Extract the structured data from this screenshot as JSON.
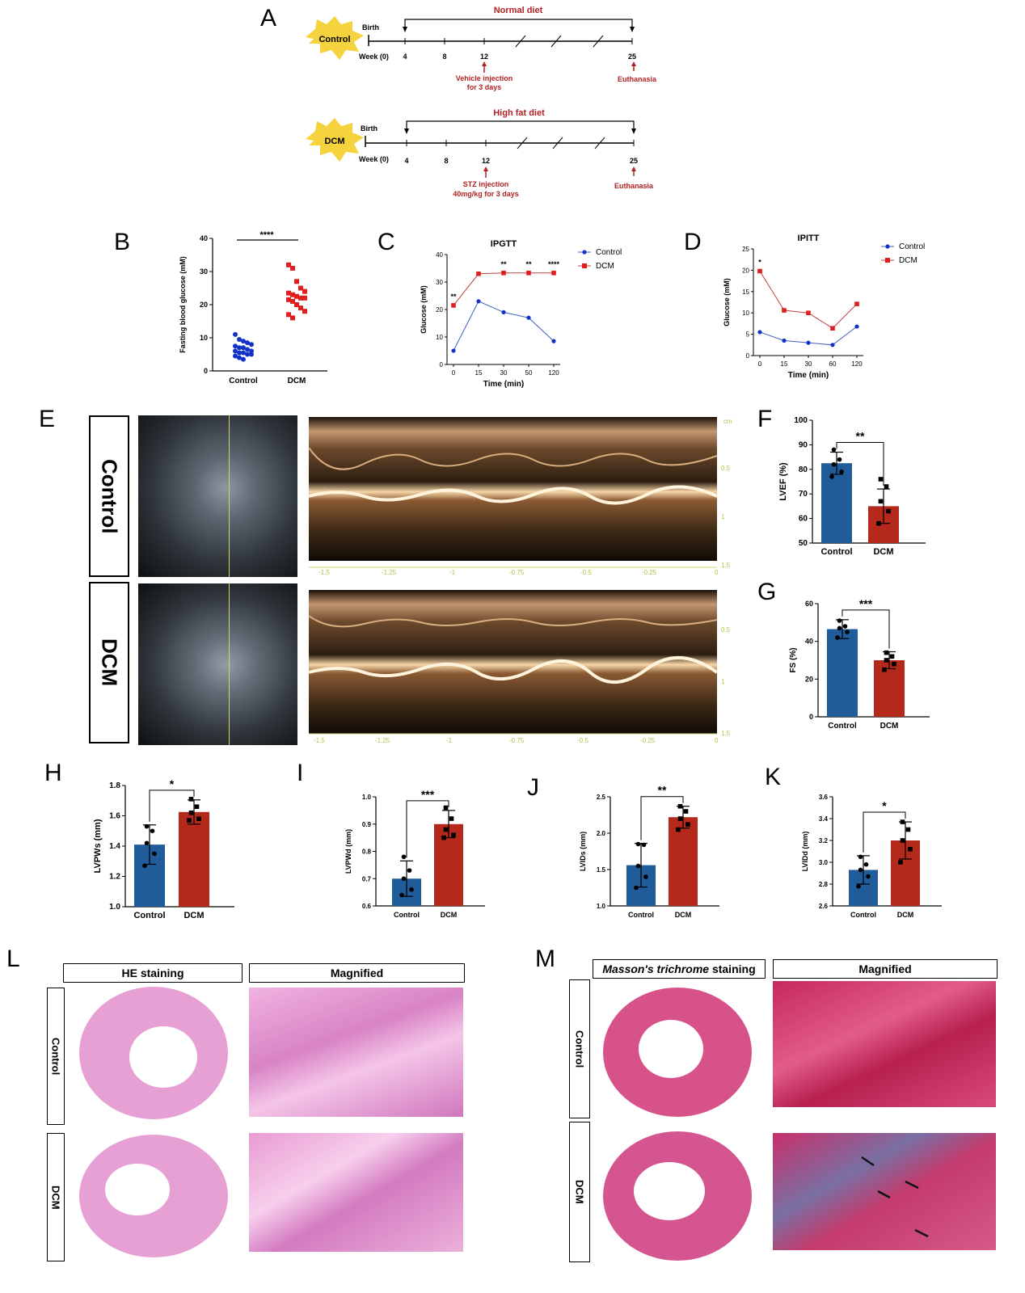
{
  "panel_letters": {
    "A": "A",
    "B": "B",
    "C": "C",
    "D": "D",
    "E": "E",
    "F": "F",
    "G": "G",
    "H": "H",
    "I": "I",
    "J": "J",
    "K": "K",
    "L": "L",
    "M": "M"
  },
  "timeline": {
    "control": {
      "group": "Control",
      "diet": "Normal diet",
      "birth": "Birth",
      "week_label": "Week (0)",
      "weeks": [
        "4",
        "8",
        "12",
        "25"
      ],
      "injection": "Vehicle injection",
      "injection_detail": "for 3 days",
      "end": "Euthanasia"
    },
    "dcm": {
      "group": "DCM",
      "diet": "High fat diet",
      "birth": "Birth",
      "week_label": "Week (0)",
      "weeks": [
        "4",
        "8",
        "12",
        "25"
      ],
      "injection": "STZ injection",
      "injection_detail": "40mg/kg for 3 days",
      "end": "Euthanasia"
    }
  },
  "echo": {
    "rows": [
      "Control",
      "DCM"
    ],
    "scale_top": "cm",
    "scale_marks": [
      "0.5",
      "1",
      "1.5"
    ],
    "time_ticks": [
      "-1.5",
      "-1.25",
      "-1",
      "-0.75",
      "-0.5",
      "-0.25",
      "0"
    ]
  },
  "histology": {
    "he_header": "HE staining",
    "he_magnified": "Magnified",
    "masson_header_italic": "Masson's trichrome",
    "masson_header_rest": " staining",
    "masson_magnified": "Magnified",
    "rows": [
      "Control",
      "DCM"
    ]
  },
  "colors": {
    "control": "#1f5c99",
    "dcm": "#b5291c",
    "blue_pt": "#1432c8",
    "red_pt": "#e01e1e",
    "dark_red": "#b22222"
  },
  "chart_data": [
    {
      "id": "B",
      "type": "scatter",
      "title": "",
      "ylabel": "Fasting blood glucose (mM)",
      "categories": [
        "Control",
        "DCM"
      ],
      "ylim": [
        0,
        40
      ],
      "yticks": [
        0,
        10,
        20,
        30,
        40
      ],
      "sig": "****",
      "points": {
        "Control": [
          11,
          9.5,
          9,
          8.5,
          8,
          7.5,
          7,
          7,
          6.5,
          6,
          6,
          5.5,
          5.5,
          5,
          5,
          4.5,
          4,
          3.5
        ],
        "DCM": [
          32,
          31,
          27,
          25,
          24,
          23.5,
          23,
          22.5,
          22,
          22,
          21.5,
          21,
          20,
          19,
          18,
          17,
          16
        ]
      }
    },
    {
      "id": "C",
      "type": "line",
      "title": "IPGTT",
      "xlabel": "Time (min)",
      "ylabel": "Glucose (mM)",
      "x": [
        "0",
        "15",
        "30",
        "50",
        "120"
      ],
      "ylim": [
        0,
        40
      ],
      "yticks": [
        0,
        10,
        20,
        30,
        40
      ],
      "series": [
        {
          "name": "Control",
          "values": [
            5,
            23,
            19,
            17,
            8.5
          ]
        },
        {
          "name": "DCM",
          "values": [
            21.5,
            33,
            33.3,
            33.3,
            33.3
          ]
        }
      ],
      "sig": [
        "**",
        "",
        "**",
        "**",
        "****"
      ]
    },
    {
      "id": "D",
      "type": "line",
      "title": "IPITT",
      "xlabel": "Time (min)",
      "ylabel": "Glucose (mM)",
      "x": [
        "0",
        "15",
        "30",
        "60",
        "120"
      ],
      "ylim": [
        0,
        25
      ],
      "yticks": [
        0,
        5,
        10,
        15,
        20,
        25
      ],
      "series": [
        {
          "name": "Control",
          "values": [
            5.5,
            3.5,
            3,
            2.5,
            6.8
          ]
        },
        {
          "name": "DCM",
          "values": [
            19.8,
            10.6,
            10,
            6.4,
            12.1
          ]
        }
      ],
      "sig": [
        "*",
        "",
        "",
        "",
        ""
      ]
    },
    {
      "id": "F",
      "type": "bar",
      "ylabel": "LVEF (%)",
      "categories": [
        "Control",
        "DCM"
      ],
      "values": [
        82.5,
        65
      ],
      "errors": [
        4.5,
        7
      ],
      "ylim": [
        50,
        100
      ],
      "yticks": [
        50,
        60,
        70,
        80,
        90,
        100
      ],
      "sig": "**",
      "points": [
        [
          88,
          84,
          82,
          79,
          77
        ],
        [
          76,
          73,
          67,
          63,
          58
        ]
      ]
    },
    {
      "id": "G",
      "type": "bar",
      "ylabel": "FS (%)",
      "categories": [
        "Control",
        "DCM"
      ],
      "values": [
        46.5,
        30
      ],
      "errors": [
        5,
        4.5
      ],
      "ylim": [
        0,
        60
      ],
      "yticks": [
        0,
        20,
        40,
        60
      ],
      "sig": "***",
      "points": [
        [
          51,
          48,
          47,
          45,
          42
        ],
        [
          34,
          32,
          30,
          28,
          25
        ]
      ]
    },
    {
      "id": "H",
      "type": "bar",
      "ylabel": "LVPWs (mm)",
      "categories": [
        "Control",
        "DCM"
      ],
      "values": [
        1.41,
        1.625
      ],
      "errors": [
        0.13,
        0.08
      ],
      "ylim": [
        1.0,
        1.8
      ],
      "yticks": [
        1.0,
        1.2,
        1.4,
        1.6,
        1.8
      ],
      "sig": "*",
      "points": [
        [
          1.53,
          1.5,
          1.42,
          1.35,
          1.27
        ],
        [
          1.71,
          1.66,
          1.62,
          1.58,
          1.57
        ]
      ]
    },
    {
      "id": "I",
      "type": "bar",
      "ylabel": "LVPWd (mm)",
      "categories": [
        "Control",
        "DCM"
      ],
      "values": [
        0.7,
        0.9
      ],
      "errors": [
        0.065,
        0.05
      ],
      "ylim": [
        0.6,
        1.0
      ],
      "yticks": [
        0.6,
        0.7,
        0.8,
        0.9,
        1.0
      ],
      "sig": "***",
      "points": [
        [
          0.78,
          0.73,
          0.7,
          0.66,
          0.64
        ],
        [
          0.96,
          0.92,
          0.88,
          0.86,
          0.85
        ]
      ]
    },
    {
      "id": "J",
      "type": "bar",
      "ylabel": "LVIDs (mm)",
      "categories": [
        "Control",
        "DCM"
      ],
      "values": [
        1.56,
        2.22
      ],
      "errors": [
        0.3,
        0.15
      ],
      "ylim": [
        1.0,
        2.5
      ],
      "yticks": [
        1.0,
        1.5,
        2.0,
        2.5
      ],
      "sig": "**",
      "points": [
        [
          1.85,
          1.84,
          1.55,
          1.4,
          1.25
        ],
        [
          2.37,
          2.3,
          2.2,
          2.12,
          2.05
        ]
      ]
    },
    {
      "id": "K",
      "type": "bar",
      "ylabel": "LVIDd (mm)",
      "categories": [
        "Control",
        "DCM"
      ],
      "values": [
        2.93,
        3.2
      ],
      "errors": [
        0.13,
        0.17
      ],
      "ylim": [
        2.6,
        3.6
      ],
      "yticks": [
        2.6,
        2.8,
        3.0,
        3.2,
        3.4,
        3.6
      ],
      "sig": "*",
      "points": [
        [
          3.05,
          2.98,
          2.93,
          2.87,
          2.78
        ],
        [
          3.37,
          3.3,
          3.2,
          3.12,
          3.0
        ]
      ]
    }
  ]
}
